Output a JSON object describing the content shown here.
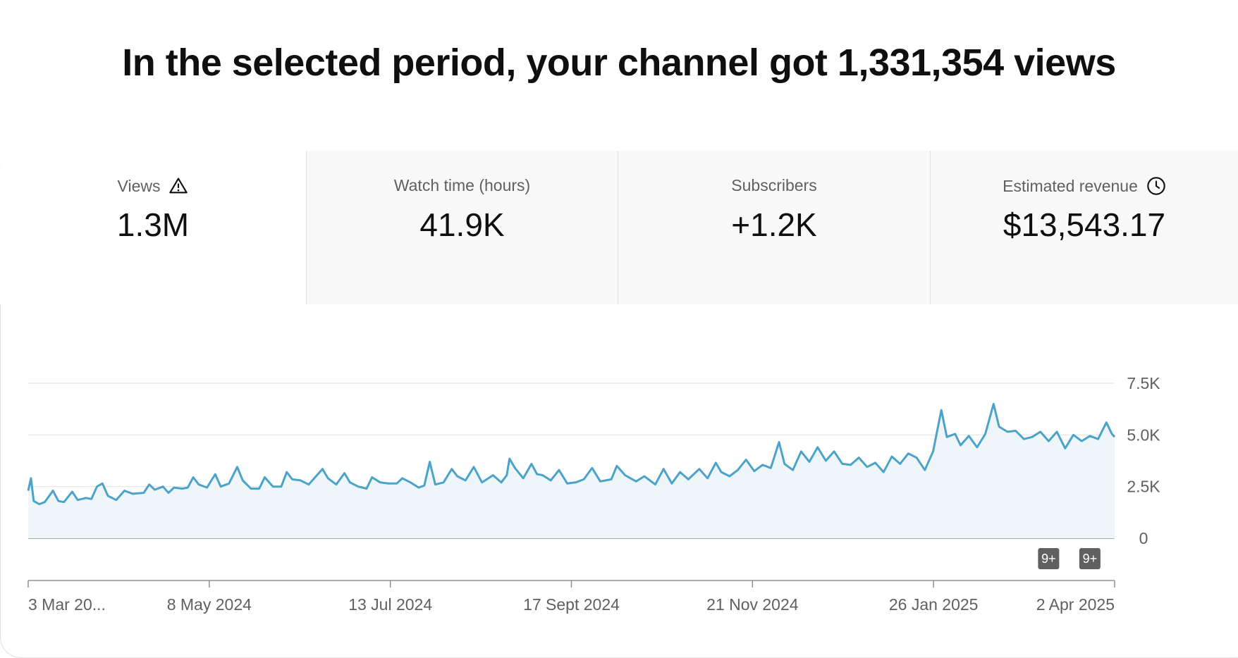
{
  "headline": "In the selected period, your channel got 1,331,354 views",
  "tabs": [
    {
      "label": "Views",
      "value": "1.3M",
      "icon": "warning-icon",
      "active": true
    },
    {
      "label": "Watch time (hours)",
      "value": "41.9K",
      "icon": "",
      "active": false
    },
    {
      "label": "Subscribers",
      "value": "+1.2K",
      "icon": "",
      "active": false
    },
    {
      "label": "Estimated revenue",
      "value": "$13,543.17",
      "icon": "clock-icon",
      "active": false
    }
  ],
  "chart_data": {
    "type": "area",
    "title": "",
    "xlabel": "",
    "ylabel": "",
    "ylim": [
      0,
      7500
    ],
    "y_ticks": [
      {
        "value": 7500,
        "label": "7.5K"
      },
      {
        "value": 5000,
        "label": "5.0K"
      },
      {
        "value": 2500,
        "label": "2.5K"
      },
      {
        "value": 0,
        "label": "0"
      }
    ],
    "x_ticks": [
      "3 Mar 20...",
      "8 May 2024",
      "13 Jul 2024",
      "17 Sept 2024",
      "21 Nov 2024",
      "26 Jan 2025",
      "2 Apr 2025"
    ],
    "x_range": [
      "2024-03-03",
      "2025-04-02"
    ],
    "grid": true,
    "colors": {
      "line": "#4ca3c9",
      "fill": "#eef6fa",
      "grid": "#e5e5e5",
      "axis": "#909090"
    },
    "series": [
      {
        "points": [
          [
            "2024-03-03",
            2300
          ],
          [
            "2024-03-04",
            2900
          ],
          [
            "2024-03-05",
            1800
          ],
          [
            "2024-03-07",
            1650
          ],
          [
            "2024-03-09",
            1750
          ],
          [
            "2024-03-12",
            2300
          ],
          [
            "2024-03-14",
            1800
          ],
          [
            "2024-03-16",
            1750
          ],
          [
            "2024-03-19",
            2250
          ],
          [
            "2024-03-21",
            1850
          ],
          [
            "2024-03-24",
            1950
          ],
          [
            "2024-03-26",
            1900
          ],
          [
            "2024-03-28",
            2500
          ],
          [
            "2024-03-30",
            2650
          ],
          [
            "2024-04-01",
            2050
          ],
          [
            "2024-04-04",
            1850
          ],
          [
            "2024-04-07",
            2300
          ],
          [
            "2024-04-10",
            2150
          ],
          [
            "2024-04-14",
            2200
          ],
          [
            "2024-04-16",
            2600
          ],
          [
            "2024-04-18",
            2350
          ],
          [
            "2024-04-21",
            2500
          ],
          [
            "2024-04-23",
            2200
          ],
          [
            "2024-04-25",
            2450
          ],
          [
            "2024-04-28",
            2400
          ],
          [
            "2024-04-30",
            2450
          ],
          [
            "2024-05-02",
            2950
          ],
          [
            "2024-05-04",
            2600
          ],
          [
            "2024-05-07",
            2450
          ],
          [
            "2024-05-10",
            3100
          ],
          [
            "2024-05-12",
            2500
          ],
          [
            "2024-05-15",
            2650
          ],
          [
            "2024-05-18",
            3450
          ],
          [
            "2024-05-20",
            2800
          ],
          [
            "2024-05-23",
            2400
          ],
          [
            "2024-05-26",
            2400
          ],
          [
            "2024-05-28",
            2950
          ],
          [
            "2024-05-31",
            2500
          ],
          [
            "2024-06-03",
            2500
          ],
          [
            "2024-06-05",
            3200
          ],
          [
            "2024-06-07",
            2850
          ],
          [
            "2024-06-10",
            2800
          ],
          [
            "2024-06-13",
            2600
          ],
          [
            "2024-06-16",
            3050
          ],
          [
            "2024-06-18",
            3350
          ],
          [
            "2024-06-20",
            2900
          ],
          [
            "2024-06-23",
            2600
          ],
          [
            "2024-06-26",
            3150
          ],
          [
            "2024-06-28",
            2700
          ],
          [
            "2024-07-01",
            2500
          ],
          [
            "2024-07-04",
            2400
          ],
          [
            "2024-07-06",
            2950
          ],
          [
            "2024-07-09",
            2700
          ],
          [
            "2024-07-12",
            2650
          ],
          [
            "2024-07-15",
            2650
          ],
          [
            "2024-07-17",
            2900
          ],
          [
            "2024-07-20",
            2700
          ],
          [
            "2024-07-23",
            2450
          ],
          [
            "2024-07-25",
            2550
          ],
          [
            "2024-07-27",
            3700
          ],
          [
            "2024-07-29",
            2600
          ],
          [
            "2024-08-01",
            2700
          ],
          [
            "2024-08-04",
            3350
          ],
          [
            "2024-08-06",
            3000
          ],
          [
            "2024-08-09",
            2800
          ],
          [
            "2024-08-12",
            3450
          ],
          [
            "2024-08-15",
            2700
          ],
          [
            "2024-08-19",
            3050
          ],
          [
            "2024-08-22",
            2700
          ],
          [
            "2024-08-24",
            3050
          ],
          [
            "2024-08-25",
            3850
          ],
          [
            "2024-08-27",
            3400
          ],
          [
            "2024-08-30",
            2900
          ],
          [
            "2024-09-02",
            3600
          ],
          [
            "2024-09-04",
            3100
          ],
          [
            "2024-09-06",
            3050
          ],
          [
            "2024-09-09",
            2800
          ],
          [
            "2024-09-12",
            3300
          ],
          [
            "2024-09-15",
            2650
          ],
          [
            "2024-09-18",
            2700
          ],
          [
            "2024-09-21",
            2850
          ],
          [
            "2024-09-24",
            3400
          ],
          [
            "2024-09-27",
            2750
          ],
          [
            "2024-10-01",
            2850
          ],
          [
            "2024-10-03",
            3500
          ],
          [
            "2024-10-06",
            3050
          ],
          [
            "2024-10-10",
            2750
          ],
          [
            "2024-10-13",
            3000
          ],
          [
            "2024-10-17",
            2600
          ],
          [
            "2024-10-20",
            3350
          ],
          [
            "2024-10-23",
            2650
          ],
          [
            "2024-10-26",
            3200
          ],
          [
            "2024-10-29",
            2850
          ],
          [
            "2024-11-02",
            3350
          ],
          [
            "2024-11-05",
            2900
          ],
          [
            "2024-11-08",
            3650
          ],
          [
            "2024-11-10",
            3200
          ],
          [
            "2024-11-13",
            3000
          ],
          [
            "2024-11-16",
            3300
          ],
          [
            "2024-11-19",
            3800
          ],
          [
            "2024-11-22",
            3250
          ],
          [
            "2024-11-25",
            3550
          ],
          [
            "2024-11-28",
            3400
          ],
          [
            "2024-12-01",
            4650
          ],
          [
            "2024-12-03",
            3600
          ],
          [
            "2024-12-06",
            3300
          ],
          [
            "2024-12-09",
            4200
          ],
          [
            "2024-12-12",
            3700
          ],
          [
            "2024-12-15",
            4400
          ],
          [
            "2024-12-18",
            3750
          ],
          [
            "2024-12-21",
            4200
          ],
          [
            "2024-12-24",
            3600
          ],
          [
            "2024-12-27",
            3550
          ],
          [
            "2024-12-30",
            3900
          ],
          [
            "2025-01-02",
            3450
          ],
          [
            "2025-01-05",
            3650
          ],
          [
            "2025-01-08",
            3200
          ],
          [
            "2025-01-11",
            3950
          ],
          [
            "2025-01-14",
            3600
          ],
          [
            "2025-01-17",
            4100
          ],
          [
            "2025-01-20",
            3900
          ],
          [
            "2025-01-23",
            3300
          ],
          [
            "2025-01-26",
            4200
          ],
          [
            "2025-01-29",
            6200
          ],
          [
            "2025-01-31",
            4900
          ],
          [
            "2025-02-03",
            5050
          ],
          [
            "2025-02-05",
            4500
          ],
          [
            "2025-02-08",
            4950
          ],
          [
            "2025-02-11",
            4400
          ],
          [
            "2025-02-14",
            5050
          ],
          [
            "2025-02-17",
            6500
          ],
          [
            "2025-02-19",
            5400
          ],
          [
            "2025-02-22",
            5150
          ],
          [
            "2025-02-25",
            5200
          ],
          [
            "2025-02-28",
            4800
          ],
          [
            "2025-03-03",
            4900
          ],
          [
            "2025-03-06",
            5150
          ],
          [
            "2025-03-09",
            4700
          ],
          [
            "2025-03-12",
            5150
          ],
          [
            "2025-03-15",
            4350
          ],
          [
            "2025-03-18",
            5000
          ],
          [
            "2025-03-21",
            4700
          ],
          [
            "2025-03-24",
            4950
          ],
          [
            "2025-03-27",
            4800
          ],
          [
            "2025-03-30",
            5600
          ],
          [
            "2025-04-01",
            5050
          ],
          [
            "2025-04-02",
            4900
          ]
        ]
      }
    ],
    "badges": [
      {
        "label": "9+",
        "x": "2025-03-09"
      },
      {
        "label": "9+",
        "x": "2025-03-24"
      }
    ]
  }
}
